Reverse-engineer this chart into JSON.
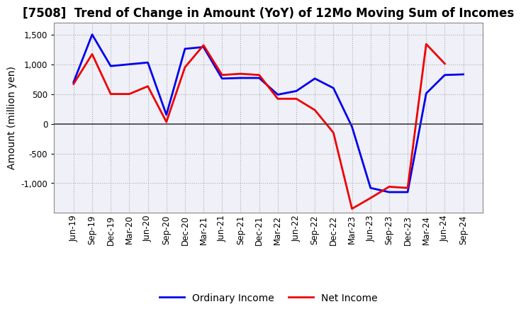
{
  "title": "[7508]  Trend of Change in Amount (YoY) of 12Mo Moving Sum of Incomes",
  "ylabel": "Amount (million yen)",
  "labels": [
    "Jun-19",
    "Sep-19",
    "Dec-19",
    "Mar-20",
    "Jun-20",
    "Sep-20",
    "Dec-20",
    "Mar-21",
    "Jun-21",
    "Sep-21",
    "Dec-21",
    "Mar-22",
    "Jun-22",
    "Sep-22",
    "Dec-22",
    "Mar-23",
    "Jun-23",
    "Sep-23",
    "Dec-23",
    "Mar-24",
    "Jun-24",
    "Sep-24"
  ],
  "ordinary_income": [
    700,
    1500,
    970,
    1000,
    1030,
    150,
    1260,
    1290,
    760,
    770,
    770,
    490,
    550,
    760,
    600,
    -50,
    -1080,
    -1150,
    -1150,
    510,
    820,
    830
  ],
  "net_income": [
    670,
    1170,
    500,
    500,
    630,
    30,
    950,
    1320,
    820,
    840,
    820,
    420,
    420,
    230,
    -150,
    -1430,
    -1250,
    -1060,
    -1080,
    1340,
    1010,
    null
  ],
  "ordinary_color": "#0000ee",
  "net_color": "#ee0000",
  "ylim": [
    -1500,
    1700
  ],
  "yticks": [
    -1000,
    -500,
    0,
    500,
    1000,
    1500
  ],
  "bg_color": "#ffffff",
  "plot_bg_color": "#f0f0f8",
  "grid_color": "#aaaaaa",
  "legend_ordinary": "Ordinary Income",
  "legend_net": "Net Income",
  "title_fontsize": 12,
  "axis_fontsize": 10,
  "tick_fontsize": 8.5
}
